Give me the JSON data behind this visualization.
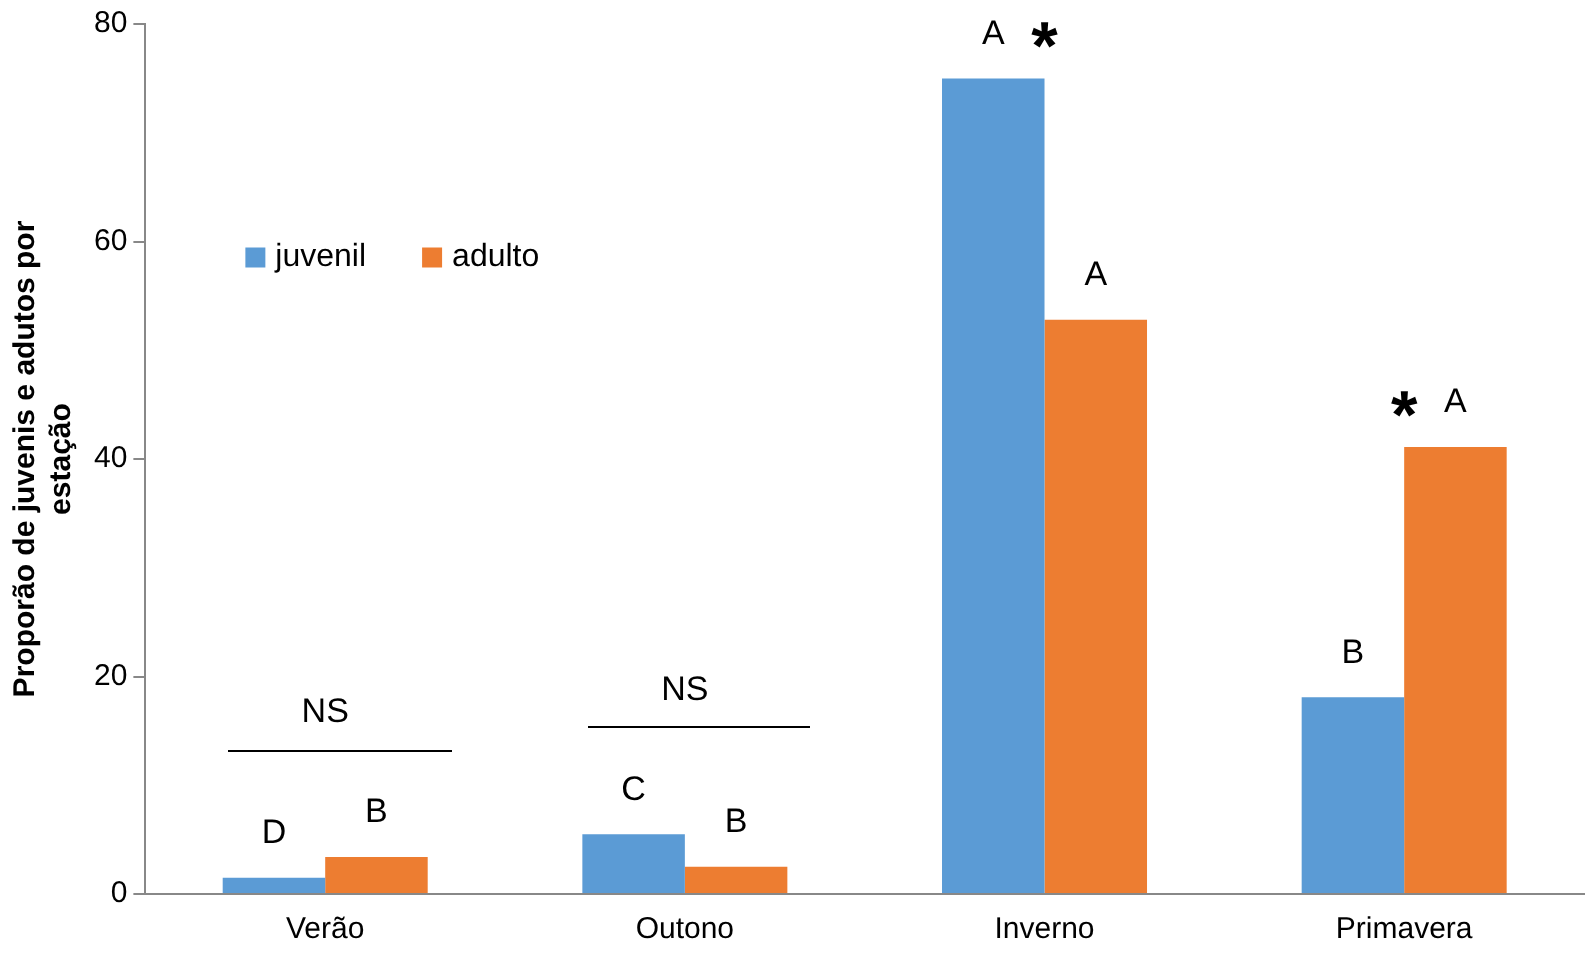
{
  "chart_data": {
    "type": "bar",
    "ylabel": "Proporão de juvenis e adutos por estação",
    "categories": [
      "Verão",
      "Outono",
      "Inverno",
      "Primavera"
    ],
    "series": [
      {
        "name": "juvenil",
        "color": "#5b9bd5",
        "values": [
          1.5,
          5.5,
          75,
          18.1
        ]
      },
      {
        "name": "adulto",
        "color": "#ed7d31",
        "values": [
          3.4,
          2.5,
          52.8,
          41.1
        ]
      }
    ],
    "ylim": [
      0,
      80
    ],
    "yticks": [
      0,
      20,
      40,
      60,
      80
    ],
    "grid": false,
    "legend": "left",
    "annotations": [
      {
        "text": "D",
        "x": "Verão",
        "y": 1.5
      },
      {
        "text": "B",
        "x": "Verão",
        "y": 3.4
      },
      "NS",
      {
        "text": "C",
        "x": "Outono",
        "y": 5.5
      },
      {
        "text": "B",
        "x": "Outono",
        "y": 2.5
      },
      "NS",
      {
        "text": "A",
        "x": "Inverno",
        "y": 75
      },
      {
        "text": "A",
        "x": "Inverno",
        "y": 52.8
      },
      {
        "text": "*",
        "x": "Inverno",
        "y": 75
      },
      {
        "text": "B",
        "x": "Primavera",
        "y": 18.1
      },
      {
        "text": "A",
        "x": "Primavera",
        "y": 41.1
      },
      {
        "text": "*",
        "x": "Primavera",
        "y": 41.1
      }
    ]
  }
}
